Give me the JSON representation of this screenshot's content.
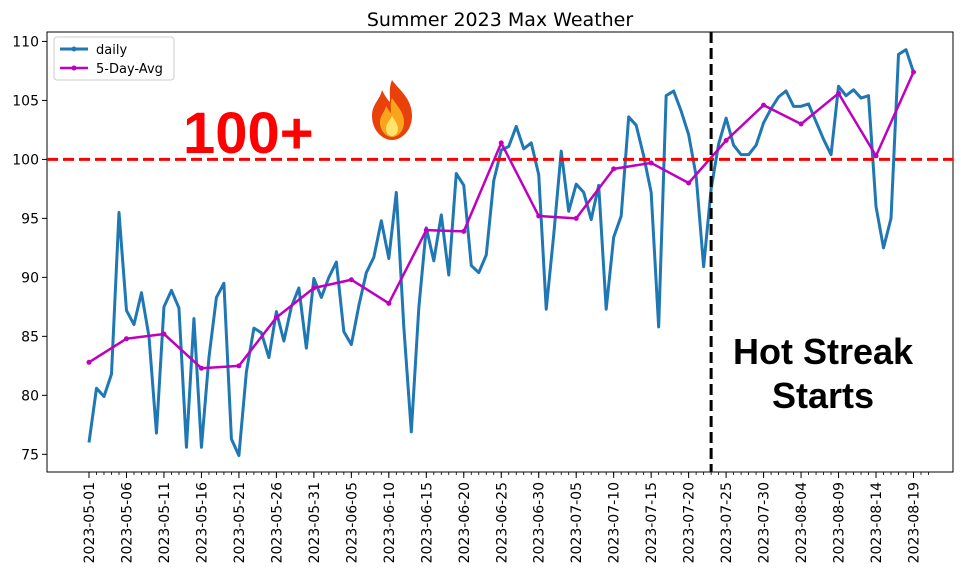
{
  "chart_data": {
    "type": "line",
    "title": "Summer 2023 Max Weather",
    "xlabel": "",
    "ylabel": "",
    "ylim": [
      73.5,
      110.8
    ],
    "yticks": [
      75,
      80,
      85,
      90,
      95,
      100,
      105,
      110
    ],
    "x_start": "2023-05-01",
    "x_end": "2023-08-21",
    "x_tick_labels": [
      "2023-05-01",
      "2023-05-06",
      "2023-05-11",
      "2023-05-16",
      "2023-05-21",
      "2023-05-26",
      "2023-05-31",
      "2023-06-05",
      "2023-06-10",
      "2023-06-15",
      "2023-06-20",
      "2023-06-25",
      "2023-06-30",
      "2023-07-05",
      "2023-07-10",
      "2023-07-15",
      "2023-07-20",
      "2023-07-25",
      "2023-07-30",
      "2023-08-04",
      "2023-08-09",
      "2023-08-14",
      "2023-08-19"
    ],
    "legend": {
      "placement": "top-left",
      "entries": [
        "daily",
        "5-Day-Avg"
      ]
    },
    "grid": false,
    "series": [
      {
        "name": "daily",
        "color": "#1f77b4",
        "values": [
          76.0,
          80.6,
          79.9,
          81.8,
          95.5,
          87.2,
          86.0,
          88.7,
          85.0,
          76.8,
          87.5,
          88.9,
          87.4,
          75.6,
          86.5,
          75.6,
          83.2,
          88.3,
          89.5,
          76.3,
          74.9,
          82.0,
          85.7,
          85.3,
          83.2,
          87.1,
          84.6,
          87.5,
          89.1,
          84.0,
          89.9,
          88.3,
          90.0,
          91.3,
          85.4,
          84.3,
          87.6,
          90.4,
          91.7,
          94.8,
          91.6,
          97.2,
          85.8,
          76.9,
          87.4,
          94.2,
          91.4,
          95.3,
          90.2,
          98.8,
          97.8,
          91.0,
          90.4,
          91.9,
          98.2,
          100.8,
          101.1,
          102.8,
          100.9,
          101.4,
          98.7,
          87.3,
          93.6,
          100.7,
          95.6,
          97.9,
          97.2,
          94.9,
          97.8,
          87.3,
          93.4,
          95.2,
          103.6,
          102.9,
          100.3,
          97.2,
          85.8,
          105.4,
          105.8,
          104.1,
          102.1,
          98.6,
          90.9,
          97.5,
          101.3,
          103.5,
          101.2,
          100.4,
          100.4,
          101.2,
          103.1,
          104.3,
          105.3,
          105.8,
          104.5,
          104.5,
          104.7,
          103.2,
          101.7,
          100.4,
          106.2,
          105.4,
          105.9,
          105.2,
          105.4,
          96.0,
          92.5,
          95.0,
          108.9,
          109.3,
          107.4
        ],
        "marker": "none"
      },
      {
        "name": "5-Day-Avg",
        "color": "#bf00bf",
        "points": [
          {
            "x": "2023-05-01",
            "y": 82.8
          },
          {
            "x": "2023-05-06",
            "y": 84.8
          },
          {
            "x": "2023-05-11",
            "y": 85.2
          },
          {
            "x": "2023-05-16",
            "y": 82.3
          },
          {
            "x": "2023-05-21",
            "y": 82.5
          },
          {
            "x": "2023-05-26",
            "y": 86.6
          },
          {
            "x": "2023-05-31",
            "y": 89.1
          },
          {
            "x": "2023-06-05",
            "y": 89.8
          },
          {
            "x": "2023-06-10",
            "y": 87.8
          },
          {
            "x": "2023-06-15",
            "y": 94.0
          },
          {
            "x": "2023-06-20",
            "y": 93.9
          },
          {
            "x": "2023-06-25",
            "y": 101.4
          },
          {
            "x": "2023-06-30",
            "y": 95.2
          },
          {
            "x": "2023-07-05",
            "y": 95.0
          },
          {
            "x": "2023-07-10",
            "y": 99.2
          },
          {
            "x": "2023-07-15",
            "y": 99.7
          },
          {
            "x": "2023-07-20",
            "y": 98.0
          },
          {
            "x": "2023-07-25",
            "y": 101.6
          },
          {
            "x": "2023-07-30",
            "y": 104.6
          },
          {
            "x": "2023-08-04",
            "y": 103.0
          },
          {
            "x": "2023-08-09",
            "y": 105.6
          },
          {
            "x": "2023-08-14",
            "y": 100.3
          },
          {
            "x": "2023-08-19",
            "y": 107.4
          }
        ]
      }
    ],
    "reference_lines": [
      {
        "orientation": "horizontal",
        "y": 100,
        "color": "#ff0000",
        "style": "dashed"
      },
      {
        "orientation": "vertical",
        "x": "2023-07-23",
        "color": "#000000",
        "style": "dashed"
      }
    ],
    "annotations": {
      "threshold_label": "100+",
      "threshold_icon": "fire-icon",
      "streak_line1": "Hot Streak",
      "streak_line2": "Starts"
    }
  }
}
